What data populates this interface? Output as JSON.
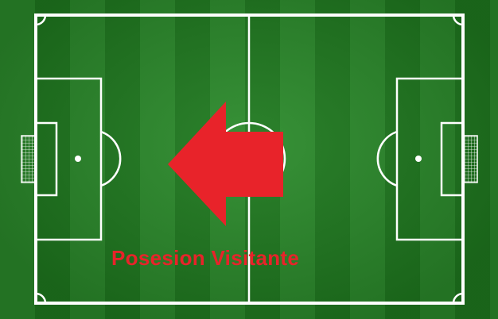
{
  "possession": {
    "text": "Posesion Visitante",
    "color": "#e8232a",
    "direction": "left"
  },
  "pitch": {
    "grass_light": "#2b8b2b",
    "grass_dark": "#1f7a1f",
    "line_color": "#ffffff"
  }
}
